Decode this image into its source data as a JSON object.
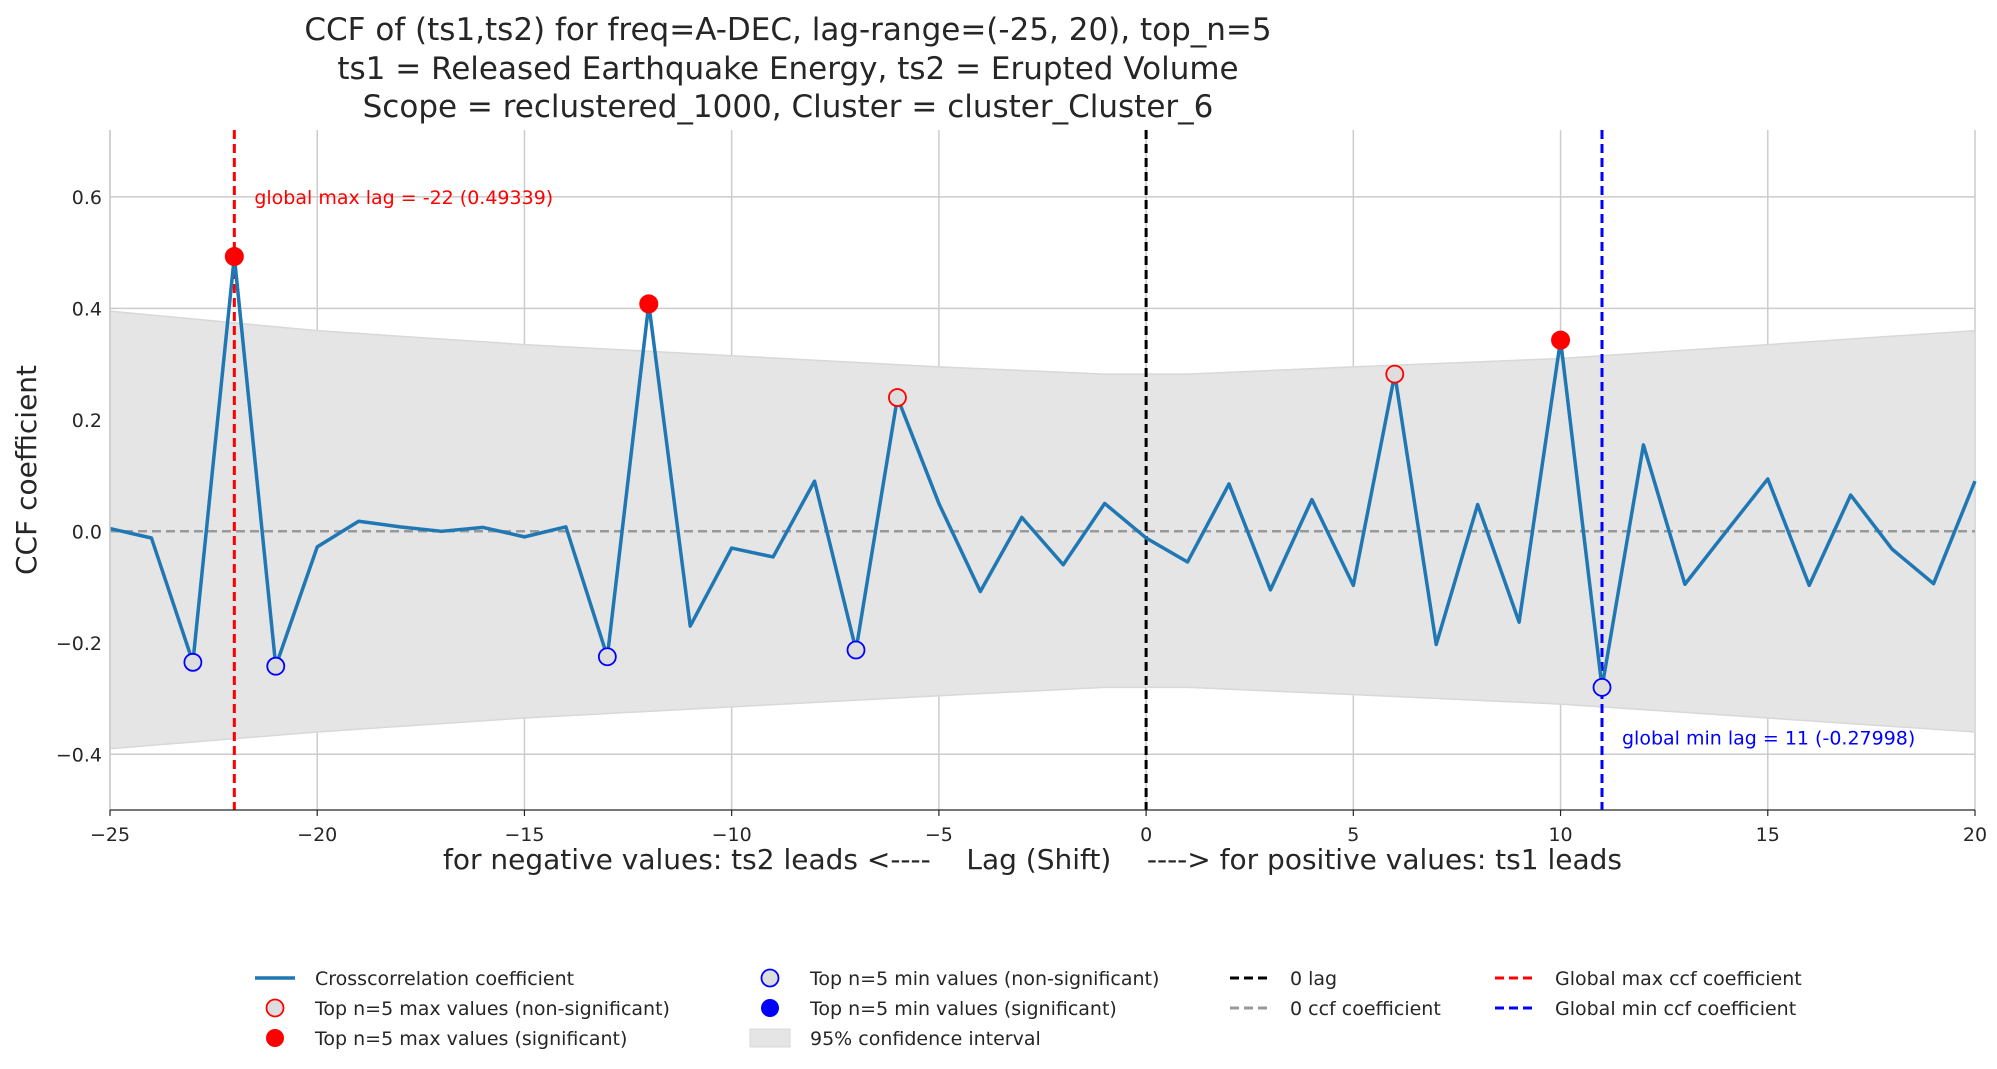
{
  "chart_data": {
    "type": "line",
    "title_lines": [
      "CCF of (ts1,ts2) for freq=A-DEC, lag-range=(-25, 20), top_n=5",
      "ts1 = Released Earthquake Energy, ts2 = Erupted Volume",
      "Scope = reclustered_1000, Cluster = cluster_Cluster_6"
    ],
    "xlabel": "for negative values: ts2 leads <----    Lag (Shift)    ----> for positive values: ts1 leads",
    "ylabel": "CCF coefficient",
    "xlim": [
      -25,
      20
    ],
    "ylim": [
      -0.5,
      0.72
    ],
    "xticks": [
      -25,
      -20,
      -15,
      -10,
      -5,
      0,
      5,
      10,
      15,
      20
    ],
    "xtick_labels": [
      "−25",
      "−20",
      "−15",
      "−10",
      "−5",
      "0",
      "5",
      "10",
      "15",
      "20"
    ],
    "yticks": [
      -0.4,
      -0.2,
      0.0,
      0.2,
      0.4,
      0.6
    ],
    "ytick_labels": [
      "−0.4",
      "−0.2",
      "0.0",
      "0.2",
      "0.4",
      "0.6"
    ],
    "grid": true,
    "legend_position": "bottom",
    "colors": {
      "line": "#1f77b4",
      "max": "#ff0000",
      "min": "#0000ff",
      "ci": "#e5e5e5",
      "zero_lag": "#000000",
      "zero_coef": "#999999",
      "grid": "#cccccc",
      "marker_face_nonsig": "#dddddd"
    },
    "series": [
      {
        "name": "Crosscorrelation coefficient",
        "x": [
          -25,
          -24,
          -23,
          -22,
          -21,
          -20,
          -19,
          -18,
          -17,
          -16,
          -15,
          -14,
          -13,
          -12,
          -11,
          -10,
          -9,
          -8,
          -7,
          -6,
          -5,
          -4,
          -3,
          -2,
          -1,
          0,
          1,
          2,
          3,
          4,
          5,
          6,
          7,
          8,
          9,
          10,
          11,
          12,
          13,
          14,
          15,
          16,
          17,
          18,
          19,
          20
        ],
        "y": [
          0.005,
          -0.012,
          -0.235,
          0.493,
          -0.242,
          -0.028,
          0.018,
          0.008,
          0.0,
          0.007,
          -0.01,
          0.008,
          -0.225,
          0.408,
          -0.17,
          -0.03,
          -0.046,
          0.09,
          -0.213,
          0.24,
          0.05,
          -0.108,
          0.025,
          -0.06,
          0.05,
          -0.012,
          -0.055,
          0.085,
          -0.105,
          0.057,
          -0.097,
          0.282,
          -0.203,
          0.048,
          -0.163,
          0.343,
          -0.28,
          0.155,
          -0.095,
          0.0,
          0.094,
          -0.097,
          0.065,
          -0.032,
          -0.094,
          0.09
        ]
      }
    ],
    "confidence_interval": {
      "name": "95% confidence interval",
      "x": [
        -25,
        -20,
        -15,
        -10,
        -5,
        -1,
        1,
        5,
        10,
        15,
        20
      ],
      "upper": [
        0.395,
        0.36,
        0.335,
        0.315,
        0.295,
        0.282,
        0.282,
        0.295,
        0.31,
        0.335,
        0.36
      ],
      "lower": [
        -0.39,
        -0.36,
        -0.335,
        -0.315,
        -0.295,
        -0.28,
        -0.28,
        -0.293,
        -0.31,
        -0.335,
        -0.36
      ]
    },
    "top_max_significant": {
      "name": "Top n=5 max values (significant)",
      "x": [
        -22,
        -12,
        10
      ],
      "y": [
        0.493,
        0.408,
        0.343
      ]
    },
    "top_max_nonsignificant": {
      "name": "Top n=5 max values (non-significant)",
      "x": [
        -6,
        6
      ],
      "y": [
        0.24,
        0.282
      ]
    },
    "top_min_nonsignificant": {
      "name": "Top n=5 min values (non-significant)",
      "x": [
        -23,
        -21,
        -13,
        -7,
        11
      ],
      "y": [
        -0.235,
        -0.242,
        -0.225,
        -0.213,
        -0.28
      ]
    },
    "top_min_significant": {
      "name": "Top n=5 min values (significant)",
      "x": [],
      "y": []
    },
    "zero_lag": {
      "name": "0 lag",
      "x": 0
    },
    "zero_coef": {
      "name": "0 ccf coefficient",
      "y": 0
    },
    "global_max": {
      "name": "Global max ccf coefficient",
      "x": -22,
      "annotation": "global max lag = -22 (0.49339)"
    },
    "global_min": {
      "name": "Global min ccf coefficient",
      "x": 11,
      "annotation": "global min lag = 11 (-0.27998)"
    },
    "legend": [
      {
        "key": "line",
        "label": "Crosscorrelation coefficient"
      },
      {
        "key": "max_nonsig",
        "label": "Top n=5 max values (non-significant)"
      },
      {
        "key": "max_sig",
        "label": "Top n=5 max values (significant)"
      },
      {
        "key": "min_nonsig",
        "label": "Top n=5 min values (non-significant)"
      },
      {
        "key": "min_sig",
        "label": "Top n=5 min values (significant)"
      },
      {
        "key": "ci",
        "label": "95% confidence interval"
      },
      {
        "key": "zero_lag",
        "label": "0 lag"
      },
      {
        "key": "zero_coef",
        "label": "0 ccf coefficient"
      },
      {
        "key": "gmax",
        "label": "Global max ccf coefficient"
      },
      {
        "key": "gmin",
        "label": "Global min ccf coefficient"
      }
    ]
  }
}
